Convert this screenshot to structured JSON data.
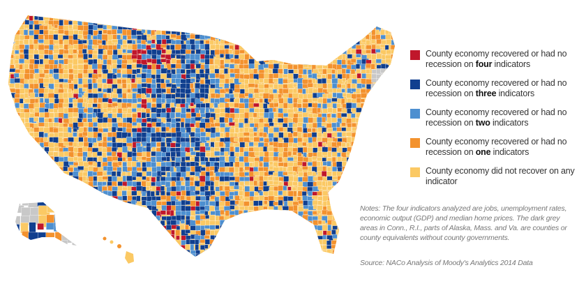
{
  "colors": {
    "four": "#c0172b",
    "three": "#103f8f",
    "two": "#4d8fd0",
    "one": "#f3922e",
    "none": "#fbc964",
    "no_government": "#c8c8c8",
    "county_border": "#ffffff"
  },
  "legend": {
    "items": [
      {
        "prefix": "County economy recovered or had no recession on ",
        "bold": "four",
        "suffix": " indicators",
        "color_key": "four"
      },
      {
        "prefix": "County economy recovered or had no recession on ",
        "bold": "three",
        "suffix": " indicators",
        "color_key": "three"
      },
      {
        "prefix": "County economy recovered or had no recession on ",
        "bold": "two",
        "suffix": " indicators",
        "color_key": "two"
      },
      {
        "prefix": "County economy recovered or had no recession on ",
        "bold": "one",
        "suffix": " indicators",
        "color_key": "one"
      },
      {
        "prefix": "County economy did not recover on any indicator",
        "bold": "",
        "suffix": "",
        "color_key": "none"
      }
    ]
  },
  "notes": "Notes: The four indicators analyzed are jobs, unemployment rates, economic output (GDP) and median home prices. The dark grey areas in Conn., R.I., parts of Alaska, Mass. and Va. are counties or county equivalents without county governments.",
  "source": "Source: NACo Analysis of Moody's Analytics 2014 Data"
}
